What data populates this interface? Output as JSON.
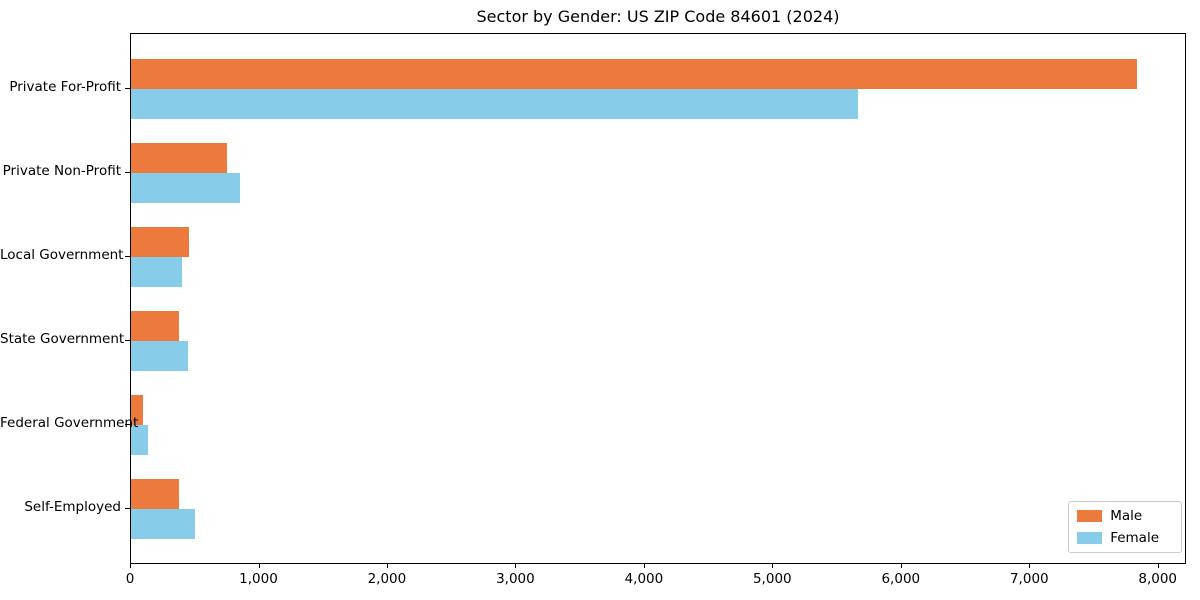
{
  "chart_data": {
    "type": "bar",
    "orientation": "horizontal",
    "title": "Sector by Gender: US ZIP Code 84601 (2024)",
    "categories": [
      "Private For-Profit",
      "Private Non-Profit",
      "Local Government",
      "State Government",
      "Federal Government",
      "Self-Employed"
    ],
    "series": [
      {
        "name": "Male",
        "color": "#ec7a3d",
        "values": [
          7830,
          745,
          450,
          375,
          95,
          370
        ]
      },
      {
        "name": "Female",
        "color": "#87cde9",
        "values": [
          5655,
          850,
          400,
          445,
          130,
          500
        ]
      }
    ],
    "xlabel": "",
    "ylabel": "",
    "xlim": [
      0,
      8220
    ],
    "xticks": [
      0,
      1000,
      2000,
      3000,
      4000,
      5000,
      6000,
      7000,
      8000
    ],
    "xtick_labels": [
      "0",
      "1,000",
      "2,000",
      "3,000",
      "4,000",
      "5,000",
      "6,000",
      "7,000",
      "8,000"
    ],
    "grid": false,
    "legend": {
      "position": "lower right",
      "entries": [
        "Male",
        "Female"
      ]
    }
  }
}
